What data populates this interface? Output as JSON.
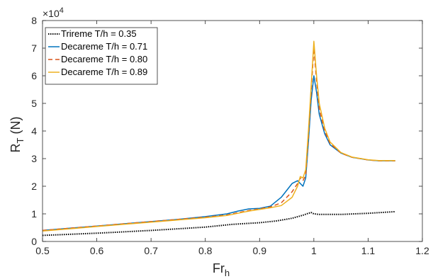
{
  "chart_data": {
    "type": "line",
    "title": "",
    "xlabel": "Fr",
    "xlabel_sub": "h",
    "ylabel": "R",
    "ylabel_sub": "T",
    "ylabel_unit": " (N)",
    "exponent_base": "×10",
    "exponent_power": "4",
    "xlim": [
      0.5,
      1.2
    ],
    "ylim": [
      0,
      8
    ],
    "xticks": [
      "0.5",
      "0.6",
      "0.7",
      "0.8",
      "0.9",
      "1",
      "1.1",
      "1.2"
    ],
    "yticks": [
      "0",
      "1",
      "2",
      "3",
      "4",
      "5",
      "6",
      "7",
      "8"
    ],
    "legend_position": "top-left",
    "grid": false,
    "series": [
      {
        "name": "Trireme T/h = 0.35",
        "color": "#000000",
        "dash": "dotted",
        "x": [
          0.5,
          0.55,
          0.6,
          0.65,
          0.7,
          0.75,
          0.8,
          0.85,
          0.9,
          0.93,
          0.96,
          0.98,
          0.99,
          0.995,
          1.0,
          1.01,
          1.05,
          1.1,
          1.15
        ],
        "y": [
          0.22,
          0.26,
          0.3,
          0.35,
          0.4,
          0.46,
          0.52,
          0.62,
          0.68,
          0.74,
          0.84,
          0.95,
          1.02,
          1.05,
          1.0,
          0.98,
          0.98,
          1.02,
          1.08
        ]
      },
      {
        "name": "Decareme T/h = 0.71",
        "color": "#0072BD",
        "dash": "solid",
        "x": [
          0.5,
          0.55,
          0.6,
          0.65,
          0.7,
          0.75,
          0.8,
          0.84,
          0.86,
          0.88,
          0.9,
          0.92,
          0.94,
          0.96,
          0.97,
          0.98,
          0.985,
          0.99,
          0.995,
          1.0,
          1.005,
          1.01,
          1.02,
          1.03,
          1.05,
          1.07,
          1.1,
          1.12,
          1.15
        ],
        "y": [
          0.4,
          0.48,
          0.56,
          0.64,
          0.72,
          0.8,
          0.9,
          1.0,
          1.1,
          1.18,
          1.2,
          1.28,
          1.6,
          2.1,
          2.2,
          2.0,
          2.3,
          3.6,
          5.1,
          6.0,
          5.4,
          4.6,
          3.9,
          3.5,
          3.2,
          3.05,
          2.95,
          2.92,
          2.92
        ]
      },
      {
        "name": "Decareme T/h = 0.80",
        "color": "#D95319",
        "dash": "dashed",
        "x": [
          0.5,
          0.55,
          0.6,
          0.65,
          0.7,
          0.75,
          0.8,
          0.84,
          0.86,
          0.88,
          0.9,
          0.92,
          0.94,
          0.96,
          0.97,
          0.975,
          0.98,
          0.985,
          0.99,
          0.995,
          1.0,
          1.005,
          1.01,
          1.02,
          1.03,
          1.05,
          1.07,
          1.1,
          1.12,
          1.15
        ],
        "y": [
          0.4,
          0.48,
          0.56,
          0.64,
          0.72,
          0.8,
          0.88,
          0.96,
          1.04,
          1.12,
          1.18,
          1.25,
          1.4,
          1.8,
          2.1,
          2.3,
          2.2,
          2.4,
          3.8,
          5.4,
          7.0,
          5.8,
          4.8,
          4.0,
          3.55,
          3.2,
          3.05,
          2.95,
          2.92,
          2.92
        ]
      },
      {
        "name": "Decareme T/h = 0.89",
        "color": "#EDB120",
        "dash": "solid",
        "x": [
          0.5,
          0.55,
          0.6,
          0.65,
          0.7,
          0.75,
          0.8,
          0.84,
          0.86,
          0.88,
          0.9,
          0.92,
          0.94,
          0.96,
          0.97,
          0.975,
          0.98,
          0.985,
          0.99,
          0.995,
          1.0,
          1.005,
          1.01,
          1.02,
          1.03,
          1.05,
          1.07,
          1.1,
          1.12,
          1.15
        ],
        "y": [
          0.38,
          0.46,
          0.54,
          0.62,
          0.7,
          0.78,
          0.86,
          0.94,
          1.02,
          1.1,
          1.16,
          1.22,
          1.3,
          1.6,
          2.0,
          2.35,
          2.3,
          2.6,
          4.0,
          5.6,
          7.25,
          6.0,
          5.0,
          4.1,
          3.6,
          3.22,
          3.06,
          2.96,
          2.93,
          2.93
        ]
      }
    ]
  }
}
